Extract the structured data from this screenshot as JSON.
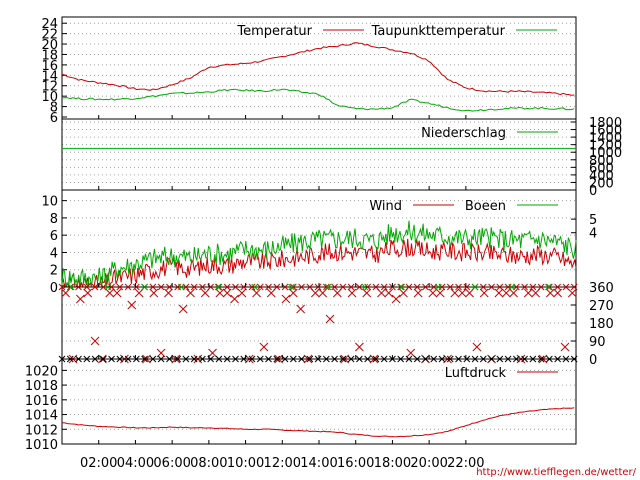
{
  "chart_data": [
    {
      "type": "line",
      "panel": "temperature",
      "ylim": [
        6,
        25
      ],
      "yticks": [
        "6",
        "8",
        "10",
        "12",
        "14",
        "16",
        "18",
        "20",
        "22",
        "24"
      ],
      "grid": true,
      "legend_placement": "top",
      "series": [
        {
          "name": "Temperatur",
          "color": "#cc0000",
          "x": [
            0,
            1,
            2,
            3,
            4,
            5,
            6,
            7,
            8,
            9,
            10,
            11,
            12,
            13,
            14,
            15,
            16,
            17,
            18,
            19,
            20,
            21,
            22,
            23,
            24,
            25,
            26,
            27,
            28
          ],
          "values": [
            14.2,
            13.1,
            12.6,
            12.1,
            11.4,
            11.2,
            12.2,
            13.5,
            15.6,
            16.0,
            16.3,
            16.8,
            17.6,
            18.4,
            19.2,
            19.6,
            20.2,
            19.6,
            18.9,
            18.3,
            16.8,
            13.2,
            11.6,
            11.0,
            10.9,
            10.9,
            10.7,
            10.5,
            10.1
          ]
        },
        {
          "name": "Taupunkttemperatur",
          "color": "#00aa00",
          "x": [
            0,
            1,
            2,
            3,
            4,
            5,
            6,
            7,
            8,
            9,
            10,
            11,
            12,
            13,
            14,
            15,
            16,
            17,
            18,
            19,
            20,
            21,
            22,
            23,
            24,
            25,
            26,
            27,
            28
          ],
          "values": [
            9.8,
            9.5,
            9.4,
            9.4,
            9.6,
            10.0,
            10.5,
            10.6,
            10.8,
            11.2,
            11.1,
            11.0,
            11.3,
            10.8,
            10.4,
            8.2,
            7.6,
            7.5,
            7.8,
            9.3,
            8.6,
            7.8,
            7.2,
            7.4,
            7.6,
            7.7,
            7.7,
            7.6,
            7.5
          ]
        }
      ]
    },
    {
      "type": "line",
      "panel": "precipitation",
      "ylim": [
        0,
        1800
      ],
      "yticks": [
        "0",
        "200",
        "400",
        "600",
        "800",
        "1000",
        "1200",
        "1400",
        "1600",
        "1800"
      ],
      "grid": true,
      "legend_placement": "top-right",
      "series": [
        {
          "name": "Niederschlag",
          "color": "#00aa00",
          "x": [
            0,
            28
          ],
          "values": [
            1100,
            1100
          ]
        }
      ]
    },
    {
      "type": "line",
      "panel": "wind",
      "ylim": [
        0,
        11
      ],
      "yticks_left": [
        "0",
        "2",
        "4",
        "6",
        "8",
        "10"
      ],
      "yticks_right": [
        "4",
        "5"
      ],
      "grid": true,
      "legend_placement": "top",
      "series": [
        {
          "name": "Wind",
          "color": "#cc0000",
          "x": [
            0,
            1,
            2,
            3,
            4,
            5,
            6,
            7,
            8,
            9,
            10,
            11,
            12,
            13,
            14,
            15,
            16,
            17,
            18,
            19,
            20,
            21,
            22,
            23,
            24,
            25,
            26,
            27,
            28
          ],
          "values": [
            0.6,
            0.4,
            0.3,
            1.0,
            1.4,
            2.0,
            2.4,
            2.1,
            2.6,
            2.5,
            3.0,
            2.9,
            3.2,
            3.5,
            3.9,
            4.1,
            4.0,
            3.7,
            4.5,
            4.6,
            4.1,
            4.2,
            4.0,
            3.9,
            3.7,
            3.6,
            3.8,
            3.5,
            2.5
          ]
        },
        {
          "name": "Boeen",
          "color": "#00aa00",
          "x": [
            0,
            1,
            2,
            3,
            4,
            5,
            6,
            7,
            8,
            9,
            10,
            11,
            12,
            13,
            14,
            15,
            16,
            17,
            18,
            19,
            20,
            21,
            22,
            23,
            24,
            25,
            26,
            27,
            28
          ],
          "values": [
            1.2,
            1.1,
            1.0,
            2.1,
            2.7,
            3.3,
            3.6,
            3.4,
            3.9,
            3.8,
            4.4,
            4.3,
            4.7,
            5.2,
            5.5,
            5.6,
            5.7,
            5.3,
            6.3,
            6.4,
            6.1,
            5.9,
            5.6,
            5.8,
            5.5,
            5.4,
            5.6,
            5.2,
            4.4
          ]
        }
      ]
    },
    {
      "type": "scatter",
      "panel": "wind-direction",
      "ylim": [
        0,
        360
      ],
      "yticks_right": [
        "0",
        "90",
        "180",
        "270",
        "360"
      ],
      "grid": true,
      "series": [
        {
          "color": "#cc0000",
          "x": [
            0.2,
            0.6,
            1.0,
            1.4,
            1.8,
            2.2,
            2.6,
            3.0,
            3.4,
            3.8,
            4.2,
            4.6,
            5.0,
            5.4,
            5.8,
            6.2,
            6.6,
            7.0,
            7.4,
            7.8,
            8.2,
            8.6,
            9.0,
            9.4,
            9.8,
            10.2,
            10.6,
            11.0,
            11.4,
            11.8,
            12.2,
            12.6,
            13.0,
            13.4,
            13.8,
            14.2,
            14.6,
            15.0,
            15.4,
            15.8,
            16.2,
            16.6,
            17.0,
            17.4,
            17.8,
            18.2,
            18.6,
            19.0,
            19.4,
            19.8,
            20.2,
            20.6,
            21.0,
            21.4,
            21.8,
            22.2,
            22.6,
            23.0,
            23.4,
            23.8,
            24.2,
            24.6,
            25.0,
            25.4,
            25.8,
            26.2,
            26.6,
            27.0,
            27.4,
            27.8
          ],
          "values": [
            330,
            0,
            300,
            330,
            90,
            0,
            330,
            330,
            0,
            270,
            330,
            0,
            330,
            30,
            330,
            0,
            250,
            330,
            0,
            330,
            30,
            330,
            330,
            300,
            330,
            0,
            330,
            60,
            330,
            0,
            300,
            330,
            250,
            0,
            330,
            330,
            200,
            330,
            0,
            330,
            60,
            330,
            0,
            330,
            330,
            300,
            330,
            30,
            330,
            0,
            330,
            330,
            0,
            330,
            330,
            330,
            60,
            330,
            0,
            330,
            330,
            330,
            0,
            330,
            330,
            0,
            330,
            330,
            60,
            330
          ]
        },
        {
          "color": "#00aa00",
          "x": [
            0.5,
            2.5,
            4.5,
            6.5,
            8.5,
            10.5,
            12.5,
            14.5,
            16.5,
            18.5,
            20.5,
            22.5,
            24.5,
            26.5
          ],
          "values": [
            360,
            360,
            360,
            360,
            360,
            360,
            360,
            360,
            360,
            360,
            360,
            360,
            360,
            360
          ]
        }
      ]
    },
    {
      "type": "line",
      "panel": "pressure",
      "ylim": [
        1010,
        1021
      ],
      "yticks": [
        "1010",
        "1012",
        "1014",
        "1016",
        "1018",
        "1020"
      ],
      "grid": true,
      "legend_placement": "top-right",
      "series": [
        {
          "name": "Luftdruck",
          "color": "#cc0000",
          "x": [
            0,
            1,
            2,
            3,
            4,
            5,
            6,
            7,
            8,
            9,
            10,
            11,
            12,
            13,
            14,
            15,
            16,
            17,
            18,
            19,
            20,
            21,
            22,
            23,
            24,
            25,
            26,
            27,
            28
          ],
          "values": [
            1012.9,
            1012.6,
            1012.4,
            1012.3,
            1012.2,
            1012.2,
            1012.3,
            1012.2,
            1012.2,
            1012.1,
            1012.0,
            1012.0,
            1011.9,
            1011.8,
            1011.7,
            1011.6,
            1011.3,
            1011.1,
            1011.0,
            1011.1,
            1011.3,
            1011.7,
            1012.5,
            1013.3,
            1013.9,
            1014.3,
            1014.6,
            1014.8,
            1014.9
          ]
        }
      ]
    }
  ],
  "x_axis": {
    "range_hours": [
      0,
      28
    ],
    "tick_labels": [
      "02:00",
      "04:00",
      "06:00",
      "08:00",
      "10:00",
      "12:00",
      "14:00",
      "16:00",
      "18:00",
      "20:00",
      "22:00"
    ],
    "tick_hours": [
      2,
      4,
      6,
      8,
      10,
      12,
      14,
      16,
      18,
      20,
      22
    ]
  },
  "footer_url": "http://www.tiefflegen.de/wetter/"
}
